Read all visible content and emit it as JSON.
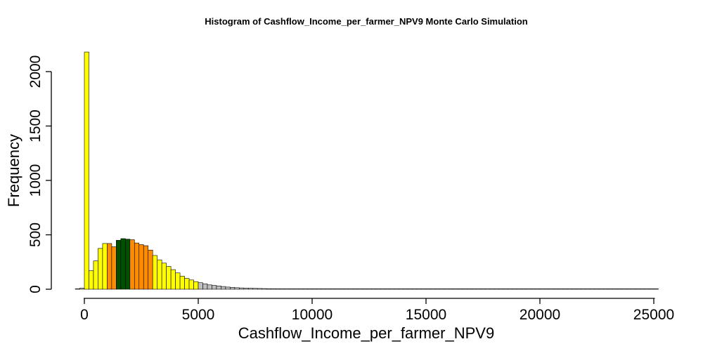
{
  "chart_data": {
    "type": "bar",
    "title": "Histogram of  Cashflow_Income_per_farmer_NPV9  Monte Carlo Simulation",
    "xlabel": "Cashflow_Income_per_farmer_NPV9",
    "ylabel": "Frequency",
    "bin_width": 200,
    "bin_start": -400,
    "xlim": [
      -400,
      25200
    ],
    "ylim": [
      0,
      2200
    ],
    "x_ticks": [
      0,
      5000,
      10000,
      15000,
      20000,
      25000
    ],
    "y_ticks": [
      0,
      500,
      1000,
      1500,
      2000
    ],
    "grid": false,
    "values": [
      2,
      10,
      2180,
      170,
      260,
      375,
      420,
      420,
      390,
      450,
      465,
      460,
      455,
      425,
      410,
      400,
      360,
      310,
      270,
      240,
      210,
      180,
      150,
      120,
      100,
      85,
      70,
      60,
      50,
      40,
      35,
      30,
      25,
      20,
      17,
      14,
      12,
      10,
      9,
      8,
      7,
      6,
      5,
      5,
      4,
      4,
      3,
      3,
      3,
      3,
      2,
      2,
      2,
      2,
      2,
      2,
      2,
      2,
      1,
      1,
      1,
      1,
      1,
      1,
      1,
      1,
      1,
      1,
      1,
      1,
      1,
      1,
      1,
      1,
      1,
      1,
      1,
      1,
      1,
      1,
      1,
      1,
      1,
      1,
      1,
      1,
      1,
      1,
      1,
      1,
      1,
      1,
      1,
      1,
      1,
      1,
      1,
      1,
      1,
      1,
      1,
      1,
      1,
      1,
      1,
      1,
      1,
      1,
      1,
      1,
      1,
      1,
      1,
      1,
      1,
      1,
      1,
      1,
      1,
      1,
      1,
      1,
      1,
      1,
      1,
      1,
      1,
      1
    ],
    "color_ranges": [
      {
        "from": -400,
        "to": 0,
        "color": "#bebebe"
      },
      {
        "from": 0,
        "to": 1000,
        "color": "#ffff00"
      },
      {
        "from": 1000,
        "to": 1400,
        "color": "#ff8c00"
      },
      {
        "from": 1400,
        "to": 2000,
        "color": "#005000"
      },
      {
        "from": 2000,
        "to": 3000,
        "color": "#ff8c00"
      },
      {
        "from": 3000,
        "to": 5000,
        "color": "#ffff00"
      },
      {
        "from": 5000,
        "to": 25200,
        "color": "#bebebe"
      }
    ]
  }
}
